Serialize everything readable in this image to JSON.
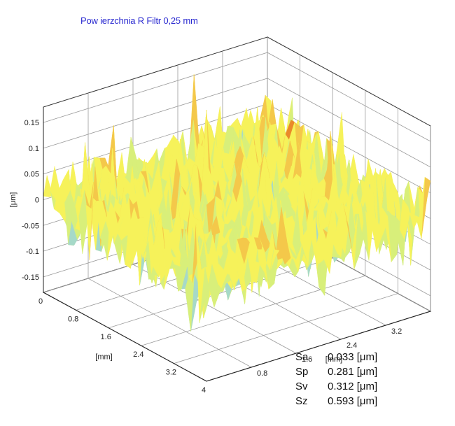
{
  "chart_data": {
    "type": "surface",
    "title": "Pow ierzchnia R Filtr 0,25 mm",
    "z_axis": {
      "label": "[μm]",
      "range": [
        -0.18,
        0.18
      ],
      "ticks": [
        "0.15",
        "0.1",
        "0.05",
        "0",
        "-0.05",
        "-0.1",
        "-0.15"
      ],
      "tick_values": [
        0.15,
        0.1,
        0.05,
        0,
        -0.05,
        -0.1,
        -0.15
      ]
    },
    "x_axis": {
      "label": "[mm]",
      "range": [
        0,
        4
      ],
      "ticks": [
        "0",
        "0.8",
        "1.6",
        "2.4",
        "3.2",
        "4"
      ],
      "tick_values": [
        0,
        0.8,
        1.6,
        2.4,
        3.2,
        4
      ]
    },
    "y_axis": {
      "label": "[mm]",
      "range": [
        0,
        4
      ],
      "ticks": [
        "0.8",
        "1.6",
        "2.4",
        "3.2"
      ],
      "tick_values": [
        0.8,
        1.6,
        2.4,
        3.2
      ]
    },
    "colormap": [
      "#8fa8e0",
      "#a6d9c8",
      "#d8ef7a",
      "#f6f25a",
      "#f4c84a",
      "#ea8a2a"
    ],
    "grid": true
  },
  "stats": [
    {
      "name": "Sa",
      "value": "0.033 [μm]"
    },
    {
      "name": "Sp",
      "value": "0.281 [μm]"
    },
    {
      "name": "Sv",
      "value": "0.312 [μm]"
    },
    {
      "name": "Sz",
      "value": "0.593 [μm]"
    }
  ]
}
